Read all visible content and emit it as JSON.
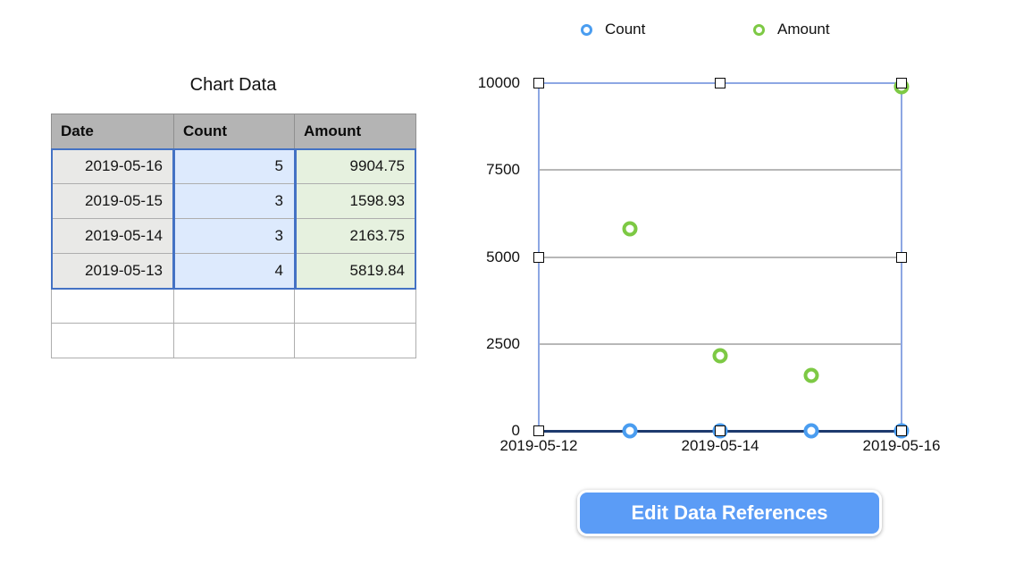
{
  "table": {
    "title": "Chart Data",
    "columns": [
      "Date",
      "Count",
      "Amount"
    ],
    "rows": [
      {
        "date": "2019-05-16",
        "count": "5",
        "amount": "9904.75"
      },
      {
        "date": "2019-05-15",
        "count": "3",
        "amount": "1598.93"
      },
      {
        "date": "2019-05-14",
        "count": "3",
        "amount": "2163.75"
      },
      {
        "date": "2019-05-13",
        "count": "4",
        "amount": "5819.84"
      }
    ],
    "empty_rows": 2
  },
  "chart_data": {
    "type": "scatter",
    "x": [
      "2019-05-13",
      "2019-05-14",
      "2019-05-15",
      "2019-05-16"
    ],
    "series": [
      {
        "name": "Count",
        "color": "#4a9df0",
        "values": [
          4,
          3,
          3,
          5
        ]
      },
      {
        "name": "Amount",
        "color": "#7dc944",
        "values": [
          5819.84,
          2163.75,
          1598.93,
          9904.75
        ]
      }
    ],
    "xlim": [
      "2019-05-12",
      "2019-05-16"
    ],
    "ylim": [
      0,
      10000
    ],
    "y_ticks": [
      0,
      2500,
      5000,
      7500,
      10000
    ],
    "x_ticks": [
      "2019-05-12",
      "2019-05-14",
      "2019-05-16"
    ],
    "grid": true,
    "legend_position": "top",
    "title": ""
  },
  "button": {
    "label": "Edit Data References"
  },
  "colors": {
    "selection_blue": "#4472c4",
    "plot_border_blue": "#8da7e3",
    "axis_navy": "#1e3a6e",
    "gridline_gray": "#b7b7b7",
    "header_gray": "#b4b4b4",
    "date_cell": "#e9e9e7",
    "count_cell": "#ddeafd",
    "amount_cell": "#e6f1df",
    "button_blue": "#5b9cf6"
  }
}
